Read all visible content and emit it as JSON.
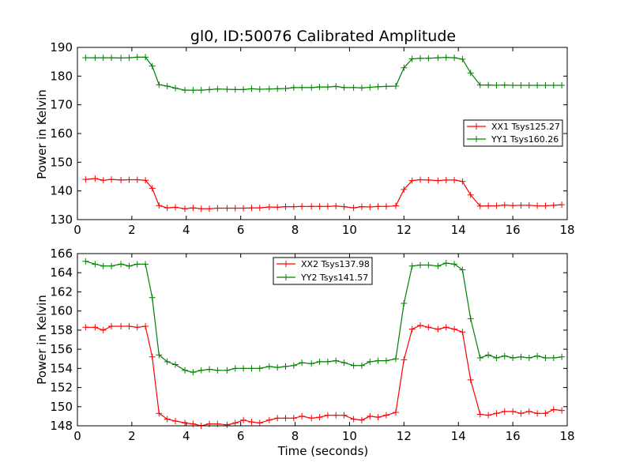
{
  "colors": {
    "xx": "#ff0000",
    "yy": "#008000"
  },
  "chart_data": [
    {
      "type": "line",
      "title": "gl0, ID:50076 Calibrated Amplitude",
      "xlabel": "",
      "ylabel": "Power in Kelvin",
      "xlim": [
        0,
        18
      ],
      "ylim": [
        130,
        190
      ],
      "xticks": [
        0,
        2,
        4,
        6,
        8,
        10,
        12,
        14,
        16,
        18
      ],
      "yticks": [
        130,
        140,
        150,
        160,
        170,
        180,
        190
      ],
      "legend_position": "center-right",
      "x": [
        0.3,
        0.65,
        0.95,
        1.25,
        1.6,
        1.9,
        2.2,
        2.5,
        2.75,
        3.0,
        3.3,
        3.6,
        3.95,
        4.25,
        4.55,
        4.85,
        5.15,
        5.5,
        5.8,
        6.1,
        6.4,
        6.7,
        7.05,
        7.35,
        7.65,
        7.95,
        8.25,
        8.6,
        8.9,
        9.2,
        9.5,
        9.8,
        10.15,
        10.45,
        10.75,
        11.05,
        11.35,
        11.7,
        12.0,
        12.3,
        12.6,
        12.9,
        13.25,
        13.55,
        13.85,
        14.15,
        14.45,
        14.8,
        15.1,
        15.4,
        15.7,
        16.0,
        16.3,
        16.6,
        16.9,
        17.2,
        17.5,
        17.8
      ],
      "series": [
        {
          "name": "XX1 Tsys125.27",
          "color_key": "xx",
          "values": [
            144.0,
            144.3,
            143.7,
            144.0,
            143.8,
            143.9,
            143.9,
            143.7,
            140.9,
            134.9,
            134.1,
            134.3,
            133.8,
            134.1,
            133.8,
            133.8,
            134.0,
            134.0,
            134.0,
            134.0,
            134.1,
            134.1,
            134.4,
            134.3,
            134.5,
            134.5,
            134.6,
            134.6,
            134.6,
            134.6,
            134.7,
            134.5,
            134.1,
            134.5,
            134.4,
            134.6,
            134.6,
            134.8,
            140.5,
            143.6,
            143.9,
            143.8,
            143.6,
            143.8,
            143.8,
            143.3,
            138.6,
            134.7,
            134.8,
            134.8,
            135.1,
            134.9,
            135.0,
            135.0,
            134.8,
            134.8,
            135.0,
            135.2
          ]
        },
        {
          "name": "YY1 Tsys160.26",
          "color_key": "yy",
          "values": [
            186.4,
            186.4,
            186.4,
            186.4,
            186.3,
            186.4,
            186.6,
            186.6,
            183.5,
            177.0,
            176.5,
            175.8,
            175.1,
            175.1,
            175.1,
            175.3,
            175.5,
            175.4,
            175.3,
            175.3,
            175.6,
            175.4,
            175.5,
            175.6,
            175.7,
            176.0,
            176.0,
            176.0,
            176.2,
            176.2,
            176.4,
            176.0,
            176.0,
            175.9,
            176.1,
            176.3,
            176.4,
            176.5,
            182.9,
            186.0,
            186.2,
            186.2,
            186.4,
            186.5,
            186.4,
            185.9,
            181.1,
            176.9,
            176.9,
            176.8,
            176.9,
            176.8,
            176.8,
            176.8,
            176.8,
            176.8,
            176.8,
            176.8
          ]
        }
      ]
    },
    {
      "type": "line",
      "title": "",
      "xlabel": "Time (seconds)",
      "ylabel": "Power in Kelvin",
      "xlim": [
        0,
        18
      ],
      "ylim": [
        148,
        166
      ],
      "xticks": [
        0,
        2,
        4,
        6,
        8,
        10,
        12,
        14,
        16,
        18
      ],
      "yticks": [
        148,
        150,
        152,
        154,
        156,
        158,
        160,
        162,
        164,
        166
      ],
      "legend_position": "top-center",
      "x": [
        0.3,
        0.65,
        0.95,
        1.25,
        1.6,
        1.9,
        2.2,
        2.5,
        2.75,
        3.0,
        3.3,
        3.6,
        3.95,
        4.25,
        4.55,
        4.85,
        5.15,
        5.5,
        5.8,
        6.1,
        6.4,
        6.7,
        7.05,
        7.35,
        7.65,
        7.95,
        8.25,
        8.6,
        8.9,
        9.2,
        9.5,
        9.8,
        10.15,
        10.45,
        10.75,
        11.05,
        11.35,
        11.7,
        12.0,
        12.3,
        12.6,
        12.9,
        13.25,
        13.55,
        13.85,
        14.15,
        14.45,
        14.8,
        15.1,
        15.4,
        15.7,
        16.0,
        16.3,
        16.6,
        16.9,
        17.2,
        17.5,
        17.8
      ],
      "series": [
        {
          "name": "XX2 Tsys137.98",
          "color_key": "xx",
          "values": [
            158.3,
            158.3,
            158.0,
            158.4,
            158.4,
            158.4,
            158.3,
            158.4,
            155.2,
            149.3,
            148.7,
            148.5,
            148.3,
            148.2,
            148.0,
            148.2,
            148.2,
            148.1,
            148.3,
            148.6,
            148.4,
            148.3,
            148.6,
            148.8,
            148.8,
            148.8,
            149.0,
            148.8,
            148.9,
            149.1,
            149.1,
            149.1,
            148.7,
            148.6,
            149.0,
            148.9,
            149.1,
            149.4,
            154.9,
            158.1,
            158.5,
            158.3,
            158.1,
            158.3,
            158.1,
            157.8,
            152.8,
            149.2,
            149.1,
            149.3,
            149.5,
            149.5,
            149.3,
            149.5,
            149.3,
            149.3,
            149.7,
            149.6
          ]
        },
        {
          "name": "YY2 Tsys141.57",
          "color_key": "yy",
          "values": [
            165.2,
            164.9,
            164.7,
            164.7,
            164.9,
            164.7,
            164.9,
            164.9,
            161.4,
            155.4,
            154.7,
            154.4,
            153.8,
            153.6,
            153.8,
            153.9,
            153.8,
            153.8,
            154.0,
            154.0,
            154.0,
            154.0,
            154.2,
            154.1,
            154.2,
            154.3,
            154.6,
            154.5,
            154.7,
            154.7,
            154.8,
            154.6,
            154.3,
            154.3,
            154.7,
            154.8,
            154.8,
            155.0,
            160.8,
            164.7,
            164.8,
            164.8,
            164.7,
            165.0,
            164.9,
            164.3,
            159.2,
            155.1,
            155.4,
            155.1,
            155.3,
            155.1,
            155.2,
            155.1,
            155.3,
            155.1,
            155.1,
            155.2
          ]
        }
      ]
    }
  ]
}
